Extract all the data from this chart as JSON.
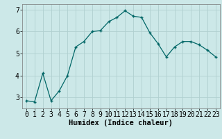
{
  "x": [
    0,
    1,
    2,
    3,
    4,
    5,
    6,
    7,
    8,
    9,
    10,
    11,
    12,
    13,
    14,
    15,
    16,
    17,
    18,
    19,
    20,
    21,
    22,
    23
  ],
  "y": [
    2.85,
    2.8,
    4.1,
    2.85,
    3.3,
    4.0,
    5.3,
    5.55,
    6.0,
    6.05,
    6.45,
    6.65,
    6.95,
    6.7,
    6.65,
    5.95,
    5.45,
    4.85,
    5.3,
    5.55,
    5.55,
    5.4,
    5.15,
    4.85
  ],
  "line_color": "#006666",
  "marker": "+",
  "bg_color": "#cce8e8",
  "grid_color": "#b0d0d0",
  "xlabel": "Humidex (Indice chaleur)",
  "xlim": [
    -0.5,
    23.5
  ],
  "ylim": [
    2.5,
    7.25
  ],
  "yticks": [
    3,
    4,
    5,
    6,
    7
  ],
  "xticks": [
    0,
    1,
    2,
    3,
    4,
    5,
    6,
    7,
    8,
    9,
    10,
    11,
    12,
    13,
    14,
    15,
    16,
    17,
    18,
    19,
    20,
    21,
    22,
    23
  ],
  "xlabel_fontsize": 7.5,
  "tick_fontsize": 7
}
